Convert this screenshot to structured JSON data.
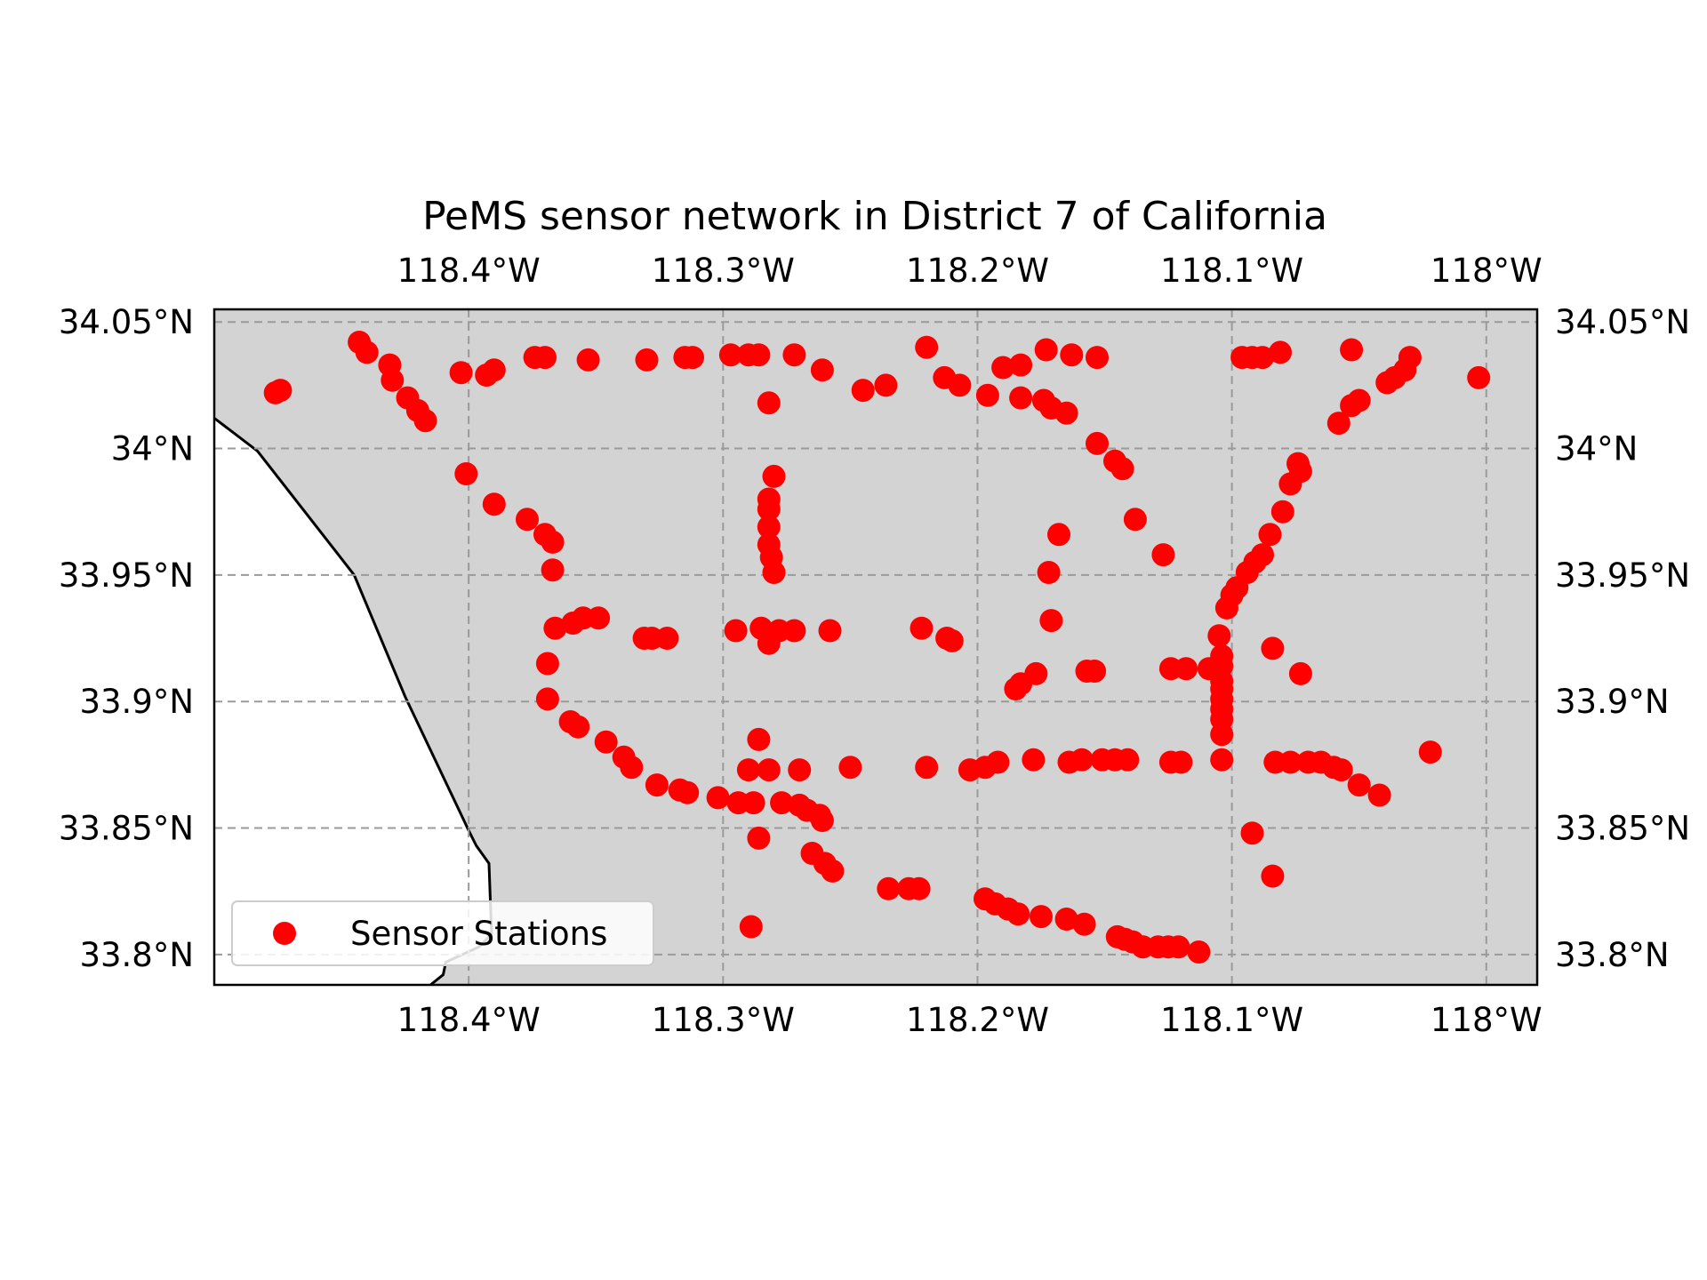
{
  "chart_data": {
    "type": "scatter",
    "title": "PeMS sensor network in District 7 of California",
    "xlim": [
      -118.5,
      -117.98
    ],
    "ylim": [
      33.788,
      34.055
    ],
    "x_ticks": [
      -118.4,
      -118.3,
      -118.2,
      -118.1,
      -118.0
    ],
    "x_tick_labels": [
      "118.4°W",
      "118.3°W",
      "118.2°W",
      "118.1°W",
      "118°W"
    ],
    "y_ticks": [
      33.8,
      33.85,
      33.9,
      33.95,
      34.0,
      34.05
    ],
    "y_tick_labels": [
      "33.8°N",
      "33.85°N",
      "33.9°N",
      "33.95°N",
      "34°N",
      "34.05°N"
    ],
    "grid": true,
    "land_color": "#d3d3d3",
    "ocean_color": "#ffffff",
    "marker_color": "#ff0000",
    "legend_position": "lower-left",
    "coastline": [
      [
        -118.5,
        34.012
      ],
      [
        -118.483,
        33.999
      ],
      [
        -118.445,
        33.95
      ],
      [
        -118.425,
        33.902
      ],
      [
        -118.4,
        33.849
      ],
      [
        -118.397,
        33.843
      ],
      [
        -118.392,
        33.836
      ],
      [
        -118.391,
        33.808
      ],
      [
        -118.396,
        33.803
      ],
      [
        -118.409,
        33.797
      ],
      [
        -118.41,
        33.792
      ],
      [
        -118.415,
        33.788
      ]
    ],
    "series": [
      {
        "name": "Sensor Stations",
        "points": [
          [
            -118.476,
            34.022
          ],
          [
            -118.474,
            34.023
          ],
          [
            -118.443,
            34.042
          ],
          [
            -118.44,
            34.038
          ],
          [
            -118.431,
            34.033
          ],
          [
            -118.43,
            34.027
          ],
          [
            -118.424,
            34.02
          ],
          [
            -118.42,
            34.015
          ],
          [
            -118.417,
            34.011
          ],
          [
            -118.403,
            34.03
          ],
          [
            -118.393,
            34.029
          ],
          [
            -118.39,
            34.031
          ],
          [
            -118.374,
            34.036
          ],
          [
            -118.37,
            34.036
          ],
          [
            -118.353,
            34.035
          ],
          [
            -118.33,
            34.035
          ],
          [
            -118.315,
            34.036
          ],
          [
            -118.312,
            34.036
          ],
          [
            -118.297,
            34.037
          ],
          [
            -118.29,
            34.037
          ],
          [
            -118.286,
            34.037
          ],
          [
            -118.272,
            34.037
          ],
          [
            -118.261,
            34.031
          ],
          [
            -118.245,
            34.023
          ],
          [
            -118.236,
            34.025
          ],
          [
            -118.22,
            34.04
          ],
          [
            -118.213,
            34.028
          ],
          [
            -118.207,
            34.025
          ],
          [
            -118.196,
            34.021
          ],
          [
            -118.19,
            34.032
          ],
          [
            -118.183,
            34.033
          ],
          [
            -118.173,
            34.039
          ],
          [
            -118.163,
            34.037
          ],
          [
            -118.153,
            34.036
          ],
          [
            -118.282,
            34.018
          ],
          [
            -118.183,
            34.02
          ],
          [
            -118.174,
            34.019
          ],
          [
            -118.171,
            34.016
          ],
          [
            -118.165,
            34.014
          ],
          [
            -118.153,
            34.002
          ],
          [
            -118.146,
            33.995
          ],
          [
            -118.143,
            33.992
          ],
          [
            -118.096,
            34.036
          ],
          [
            -118.092,
            34.036
          ],
          [
            -118.088,
            34.036
          ],
          [
            -118.081,
            34.038
          ],
          [
            -118.053,
            34.039
          ],
          [
            -118.03,
            34.036
          ],
          [
            -118.032,
            34.031
          ],
          [
            -118.036,
            34.028
          ],
          [
            -118.039,
            34.026
          ],
          [
            -118.003,
            34.028
          ],
          [
            -118.05,
            34.019
          ],
          [
            -118.053,
            34.017
          ],
          [
            -118.058,
            34.01
          ],
          [
            -118.073,
            33.991
          ],
          [
            -118.074,
            33.994
          ],
          [
            -118.077,
            33.986
          ],
          [
            -118.08,
            33.975
          ],
          [
            -118.085,
            33.966
          ],
          [
            -118.088,
            33.958
          ],
          [
            -118.091,
            33.955
          ],
          [
            -118.094,
            33.951
          ],
          [
            -118.098,
            33.945
          ],
          [
            -118.1,
            33.942
          ],
          [
            -118.102,
            33.937
          ],
          [
            -118.401,
            33.99
          ],
          [
            -118.39,
            33.978
          ],
          [
            -118.377,
            33.972
          ],
          [
            -118.37,
            33.966
          ],
          [
            -118.367,
            33.963
          ],
          [
            -118.367,
            33.952
          ],
          [
            -118.28,
            33.989
          ],
          [
            -118.282,
            33.98
          ],
          [
            -118.282,
            33.976
          ],
          [
            -118.282,
            33.969
          ],
          [
            -118.282,
            33.962
          ],
          [
            -118.281,
            33.957
          ],
          [
            -118.28,
            33.951
          ],
          [
            -118.366,
            33.929
          ],
          [
            -118.359,
            33.931
          ],
          [
            -118.355,
            33.933
          ],
          [
            -118.349,
            33.933
          ],
          [
            -118.331,
            33.925
          ],
          [
            -118.328,
            33.925
          ],
          [
            -118.322,
            33.925
          ],
          [
            -118.295,
            33.928
          ],
          [
            -118.285,
            33.929
          ],
          [
            -118.282,
            33.923
          ],
          [
            -118.278,
            33.928
          ],
          [
            -118.272,
            33.928
          ],
          [
            -118.258,
            33.928
          ],
          [
            -118.222,
            33.929
          ],
          [
            -118.212,
            33.925
          ],
          [
            -118.21,
            33.924
          ],
          [
            -118.171,
            33.932
          ],
          [
            -118.177,
            33.911
          ],
          [
            -118.183,
            33.907
          ],
          [
            -118.185,
            33.905
          ],
          [
            -118.157,
            33.912
          ],
          [
            -118.154,
            33.912
          ],
          [
            -118.124,
            33.913
          ],
          [
            -118.118,
            33.913
          ],
          [
            -118.109,
            33.913
          ],
          [
            -118.105,
            33.926
          ],
          [
            -118.104,
            33.918
          ],
          [
            -118.104,
            33.914
          ],
          [
            -118.104,
            33.908
          ],
          [
            -118.104,
            33.905
          ],
          [
            -118.104,
            33.901
          ],
          [
            -118.104,
            33.897
          ],
          [
            -118.104,
            33.893
          ],
          [
            -118.104,
            33.887
          ],
          [
            -118.104,
            33.877
          ],
          [
            -118.138,
            33.972
          ],
          [
            -118.127,
            33.958
          ],
          [
            -118.168,
            33.966
          ],
          [
            -118.172,
            33.951
          ],
          [
            -118.084,
            33.921
          ],
          [
            -118.073,
            33.911
          ],
          [
            -118.369,
            33.915
          ],
          [
            -118.369,
            33.901
          ],
          [
            -118.36,
            33.892
          ],
          [
            -118.357,
            33.89
          ],
          [
            -118.346,
            33.884
          ],
          [
            -118.339,
            33.878
          ],
          [
            -118.336,
            33.874
          ],
          [
            -118.326,
            33.867
          ],
          [
            -118.317,
            33.865
          ],
          [
            -118.314,
            33.864
          ],
          [
            -118.302,
            33.862
          ],
          [
            -118.294,
            33.86
          ],
          [
            -118.288,
            33.86
          ],
          [
            -118.277,
            33.86
          ],
          [
            -118.27,
            33.859
          ],
          [
            -118.267,
            33.857
          ],
          [
            -118.262,
            33.855
          ],
          [
            -118.261,
            33.853
          ],
          [
            -118.286,
            33.885
          ],
          [
            -118.29,
            33.873
          ],
          [
            -118.282,
            33.873
          ],
          [
            -118.27,
            33.873
          ],
          [
            -118.25,
            33.874
          ],
          [
            -118.22,
            33.874
          ],
          [
            -118.203,
            33.873
          ],
          [
            -118.197,
            33.874
          ],
          [
            -118.192,
            33.876
          ],
          [
            -118.178,
            33.877
          ],
          [
            -118.164,
            33.876
          ],
          [
            -118.159,
            33.877
          ],
          [
            -118.151,
            33.877
          ],
          [
            -118.146,
            33.877
          ],
          [
            -118.141,
            33.877
          ],
          [
            -118.124,
            33.876
          ],
          [
            -118.12,
            33.876
          ],
          [
            -118.083,
            33.876
          ],
          [
            -118.077,
            33.876
          ],
          [
            -118.07,
            33.876
          ],
          [
            -118.065,
            33.876
          ],
          [
            -118.06,
            33.874
          ],
          [
            -118.057,
            33.873
          ],
          [
            -118.05,
            33.867
          ],
          [
            -118.042,
            33.863
          ],
          [
            -118.022,
            33.88
          ],
          [
            -118.092,
            33.848
          ],
          [
            -118.084,
            33.831
          ],
          [
            -118.286,
            33.846
          ],
          [
            -118.289,
            33.811
          ],
          [
            -118.265,
            33.84
          ],
          [
            -118.26,
            33.836
          ],
          [
            -118.257,
            33.833
          ],
          [
            -118.235,
            33.826
          ],
          [
            -118.227,
            33.826
          ],
          [
            -118.223,
            33.826
          ],
          [
            -118.197,
            33.822
          ],
          [
            -118.193,
            33.82
          ],
          [
            -118.188,
            33.818
          ],
          [
            -118.184,
            33.816
          ],
          [
            -118.175,
            33.815
          ],
          [
            -118.165,
            33.814
          ],
          [
            -118.158,
            33.812
          ],
          [
            -118.145,
            33.807
          ],
          [
            -118.142,
            33.806
          ],
          [
            -118.139,
            33.805
          ],
          [
            -118.135,
            33.803
          ],
          [
            -118.129,
            33.803
          ],
          [
            -118.125,
            33.803
          ],
          [
            -118.121,
            33.803
          ],
          [
            -118.113,
            33.801
          ]
        ]
      }
    ],
    "legend": [
      {
        "label": "Sensor Stations"
      }
    ]
  }
}
